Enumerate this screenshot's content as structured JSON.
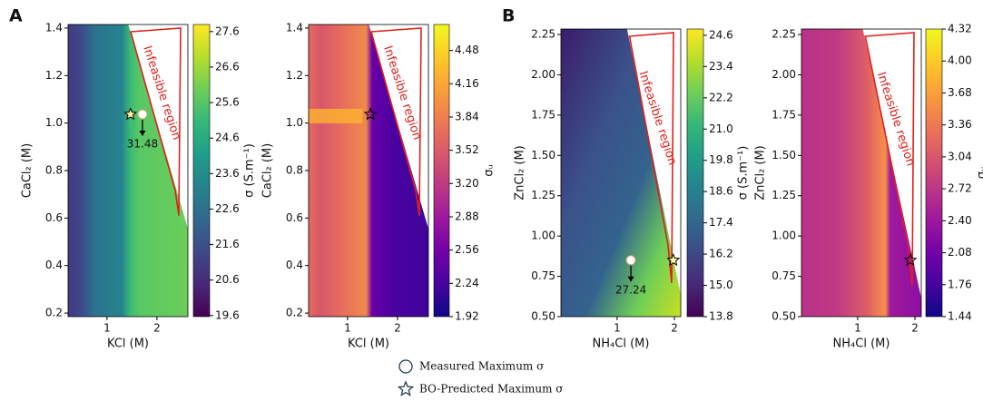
{
  "chart_data": [
    {
      "type": "heatmap",
      "panel_label": "A",
      "xlabel": "KCl (M)",
      "ylabel": "CaCl₂ (M)",
      "colorbar_label": "σ (S.m⁻¹)",
      "region_label": "Infeasible region",
      "colormap": "viridis",
      "xlim": [
        0.22,
        2.62
      ],
      "ylim": [
        0.185,
        1.415
      ],
      "xticks": [
        1,
        2
      ],
      "yticks": [
        0.2,
        0.4,
        0.6,
        0.8,
        {
          "value": 1,
          "label": "1.0"
        },
        1.2,
        1.4
      ],
      "clim": [
        19.57,
        27.8
      ],
      "cticks": [
        19.6,
        20.6,
        21.6,
        22.6,
        23.6,
        24.6,
        25.6,
        26.6,
        27.6
      ],
      "measured": {
        "x": 1.71,
        "y": 1.037,
        "value": 31.48
      },
      "predicted": {
        "x": 1.47,
        "y": 1.037
      }
    },
    {
      "type": "heatmap",
      "xlabel": "KCl (M)",
      "ylabel": "CaCl₂ (M)",
      "colorbar_label": "σᵤ",
      "region_label": "Infeasible region",
      "colormap": "plasma",
      "xlim": [
        0.22,
        2.62
      ],
      "ylim": [
        0.185,
        1.415
      ],
      "xticks": [
        1,
        2
      ],
      "yticks": [
        0.2,
        0.4,
        0.6,
        0.8,
        {
          "value": 1,
          "label": "1.0"
        },
        1.2,
        1.4
      ],
      "clim": [
        1.92,
        4.73
      ],
      "cticks": [
        1.92,
        2.24,
        2.56,
        2.88,
        {
          "value": 3.2,
          "label": "3.20"
        },
        3.52,
        3.84,
        4.16,
        4.48
      ],
      "predicted": {
        "x": 1.46,
        "y": 1.037
      }
    },
    {
      "type": "heatmap",
      "panel_label": "B",
      "xlabel": "NH₄Cl (M)",
      "ylabel": "ZnCl₂ (M)",
      "colorbar_label": "σ (S.m⁻¹)",
      "region_label": "Infeasible region",
      "colormap": "viridis",
      "xlim": [
        0.02,
        2.11
      ],
      "ylim": [
        0.5,
        2.284
      ],
      "xticks": [
        1,
        2
      ],
      "yticks": [
        {
          "value": 0.5,
          "label": "0.50"
        },
        0.75,
        {
          "value": 1,
          "label": "1.00"
        },
        1.25,
        {
          "value": 1.5,
          "label": "1.50"
        },
        1.75,
        {
          "value": 2,
          "label": "2.00"
        },
        2.25
      ],
      "clim": [
        13.8,
        24.84
      ],
      "cticks": [
        13.8,
        {
          "value": 15,
          "label": "15.0"
        },
        16.2,
        17.4,
        18.6,
        19.8,
        {
          "value": 21,
          "label": "21.0"
        },
        22.2,
        23.4,
        24.6
      ],
      "measured": {
        "x": 1.24,
        "y": 0.85,
        "value": 27.24
      },
      "predicted": {
        "x": 1.98,
        "y": 0.85
      }
    },
    {
      "type": "heatmap",
      "xlabel": "NH₄Cl (M)",
      "ylabel": "ZnCl₂ (M)",
      "colorbar_label": "σᵤ",
      "region_label": "Infeasible region",
      "colormap": "plasma",
      "xlim": [
        0.02,
        2.11
      ],
      "ylim": [
        0.5,
        2.284
      ],
      "xticks": [
        1,
        2
      ],
      "yticks": [
        {
          "value": 0.5,
          "label": "0.50"
        },
        0.75,
        {
          "value": 1,
          "label": "1.00"
        },
        1.25,
        {
          "value": 1.5,
          "label": "1.50"
        },
        1.75,
        {
          "value": 2,
          "label": "2.00"
        },
        2.25
      ],
      "clim": [
        1.44,
        4.32
      ],
      "cticks": [
        1.44,
        1.76,
        2.08,
        {
          "value": 2.4,
          "label": "2.40"
        },
        2.72,
        3.04,
        3.36,
        3.68,
        {
          "value": 4,
          "label": "4.00"
        },
        4.32
      ],
      "predicted": {
        "x": 1.92,
        "y": 0.85
      }
    }
  ],
  "legend": {
    "measured": "Measured Maximum σ",
    "predicted": "BO-Predicted Maximum σ"
  }
}
